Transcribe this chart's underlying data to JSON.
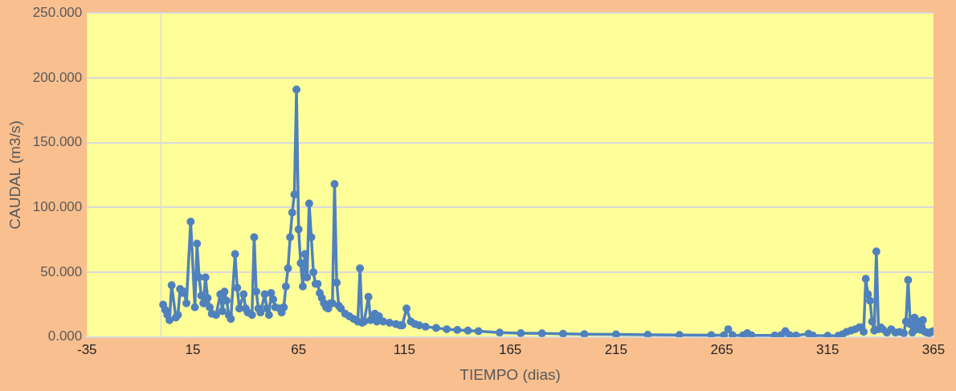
{
  "chart_data": {
    "type": "line",
    "xlabel": "TIEMPO (dias)",
    "ylabel": "CAUDAL (m3/s)",
    "xlim": [
      -35,
      365
    ],
    "xticks": [
      -35,
      15,
      65,
      115,
      165,
      215,
      265,
      315,
      365
    ],
    "ylim": [
      0,
      250
    ],
    "yticks": [
      {
        "value": 0,
        "label": "0.000"
      },
      {
        "value": 50,
        "label": "50.000"
      },
      {
        "value": 100,
        "label": "100.000"
      },
      {
        "value": 150,
        "label": "150.000"
      },
      {
        "value": 200,
        "label": "200.000"
      },
      {
        "value": 250,
        "label": "250.000"
      }
    ],
    "grid": "y",
    "legend": false,
    "marker": "circle",
    "line_style": "solid",
    "ref_lines": [
      {
        "axis": "x",
        "value": 0,
        "color": "#d9d9d9"
      }
    ],
    "series": [
      {
        "color": "#4f81bd",
        "x": [
          1,
          2,
          3,
          4,
          5,
          7,
          8,
          9,
          10,
          11,
          12,
          14,
          16,
          17,
          18,
          19,
          20,
          21,
          22,
          23,
          24,
          26,
          28,
          29,
          30,
          31,
          32,
          33,
          35,
          36,
          37,
          39,
          40,
          41,
          43,
          44,
          45,
          46,
          47,
          49,
          50,
          51,
          52,
          53,
          54,
          56,
          57,
          58,
          59,
          60,
          61,
          62,
          63,
          64,
          65,
          66,
          67,
          68,
          69,
          70,
          71,
          72,
          73,
          74,
          75,
          76,
          77,
          78,
          79,
          80,
          81,
          82,
          83,
          84,
          85,
          87,
          89,
          91,
          93,
          94,
          95,
          96,
          98,
          99,
          100,
          101,
          102,
          103,
          105,
          108,
          111,
          113,
          114,
          116,
          118,
          120,
          122,
          125,
          130,
          135,
          140,
          145,
          150,
          160,
          170,
          180,
          190,
          200,
          215,
          230,
          245,
          260,
          266,
          268,
          270,
          275,
          277,
          279,
          290,
          293,
          295,
          297,
          300,
          306,
          308,
          315,
          320,
          322,
          324,
          326,
          328,
          330,
          331,
          332,
          333,
          334,
          335,
          336,
          337,
          338,
          339,
          340,
          341,
          343,
          345,
          347,
          349,
          351,
          352,
          353,
          354,
          355,
          356,
          357,
          358,
          359,
          360,
          361,
          362,
          363,
          364,
          365
        ],
        "values": [
          25,
          21,
          17,
          13,
          40,
          15,
          17,
          37,
          34,
          35,
          26,
          89,
          23,
          72,
          46,
          32,
          26,
          46,
          30,
          23,
          18,
          17,
          33,
          20,
          35,
          28,
          17,
          14,
          64,
          38,
          22,
          33,
          22,
          19,
          17,
          77,
          35,
          22,
          19,
          33,
          22,
          17,
          34,
          29,
          23,
          22,
          19,
          23,
          39,
          53,
          77,
          96,
          110,
          191,
          83,
          57,
          39,
          64,
          46,
          103,
          77,
          50,
          41,
          41,
          34,
          30,
          26,
          23,
          22,
          26,
          26,
          118,
          42,
          24,
          22,
          18,
          16,
          14,
          12,
          53,
          11,
          12,
          31,
          13,
          15,
          18,
          12,
          16,
          12,
          11,
          10,
          9,
          9,
          22,
          12,
          10,
          9,
          8,
          7,
          6,
          5.5,
          5,
          4.5,
          3.5,
          3,
          2.8,
          2.5,
          2.2,
          2,
          1.8,
          1.6,
          1.4,
          1.4,
          6,
          1.5,
          1.3,
          3,
          1.3,
          1.2,
          1.5,
          4.5,
          1.5,
          1.2,
          2.5,
          1.1,
          1,
          1,
          2,
          4,
          5,
          6,
          7.5,
          7.5,
          4,
          45,
          33,
          28,
          12,
          5,
          66,
          6,
          7.5,
          6,
          3.5,
          6,
          3.5,
          4,
          3,
          12,
          44,
          10,
          3.5,
          15,
          6,
          12,
          5.5,
          13,
          4,
          3.5,
          3,
          4,
          4.5
        ]
      }
    ]
  }
}
